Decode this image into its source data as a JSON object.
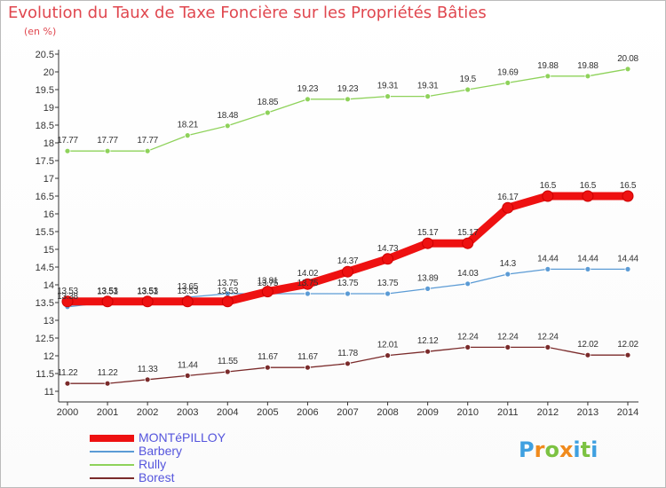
{
  "title": "Evolution du Taux de Taxe Foncière sur les Propriétés Bâties",
  "unit": "(en %)",
  "logo": {
    "text": "Proxiti",
    "letters": [
      "P",
      "r",
      "o",
      "x",
      "i",
      "t",
      "i"
    ],
    "colors": [
      "#3fa0e0",
      "#f08a1c",
      "#7cc242",
      "#f08a1c",
      "#3fa0e0",
      "#7cc242",
      "#3fa0e0"
    ]
  },
  "chart_data": {
    "type": "line",
    "x": [
      2000,
      2001,
      2002,
      2003,
      2004,
      2005,
      2006,
      2007,
      2008,
      2009,
      2010,
      2011,
      2012,
      2013,
      2014
    ],
    "ylim": [
      11,
      20.5
    ],
    "yticks": [
      "11",
      "11.5",
      "12",
      "12.5",
      "13",
      "13.5",
      "14",
      "14.5",
      "15",
      "15.5",
      "16",
      "16.5",
      "17",
      "17.5",
      "18",
      "18.5",
      "19",
      "19.5",
      "20",
      "20.5"
    ],
    "grid": false,
    "legend_position": "bottom-left",
    "series": [
      {
        "name": "MONTéPILLOY",
        "color": "#ee1111",
        "values": [
          13.53,
          13.53,
          13.53,
          13.53,
          13.53,
          13.81,
          14.02,
          14.37,
          14.73,
          15.17,
          15.17,
          16.17,
          16.5,
          16.5,
          16.5
        ],
        "labels": [
          "13.53",
          "13.53",
          "13.53",
          "13.53",
          "13.53",
          "13.81",
          "14.02",
          "14.37",
          "14.73",
          "15.17",
          "15.17",
          "16.17",
          "16.5",
          "16.5",
          "16.5"
        ]
      },
      {
        "name": "Barbery",
        "color": "#5b9bd5",
        "values": [
          13.38,
          13.51,
          13.51,
          13.65,
          13.75,
          13.75,
          13.75,
          13.75,
          13.75,
          13.89,
          14.03,
          14.3,
          14.44,
          14.44,
          14.44
        ],
        "labels": [
          "13.38",
          "13.51",
          "13.51",
          "13.65",
          "13.75",
          "13.75",
          "13.75",
          "13.75",
          "13.75",
          "13.89",
          "14.03",
          "14.3",
          "14.44",
          "14.44",
          "14.44"
        ]
      },
      {
        "name": "Rully",
        "color": "#8ed25a",
        "values": [
          17.77,
          17.77,
          17.77,
          18.21,
          18.48,
          18.85,
          19.23,
          19.23,
          19.31,
          19.31,
          19.5,
          19.69,
          19.88,
          19.88,
          20.08
        ],
        "labels": [
          "17.77",
          "17.77",
          "17.77",
          "18.21",
          "18.48",
          "18.85",
          "19.23",
          "19.23",
          "19.31",
          "19.31",
          "19.5",
          "19.69",
          "19.88",
          "19.88",
          "20.08"
        ]
      },
      {
        "name": "Borest",
        "color": "#7a2a2a",
        "values": [
          11.22,
          11.22,
          11.33,
          11.44,
          11.55,
          11.67,
          11.67,
          11.78,
          12.01,
          12.12,
          12.24,
          12.24,
          12.24,
          12.02,
          12.02
        ],
        "labels": [
          "11.22",
          "11.22",
          "11.33",
          "11.44",
          "11.55",
          "11.67",
          "11.67",
          "11.78",
          "12.01",
          "12.12",
          "12.24",
          "12.24",
          "12.24",
          "12.02",
          "12.02"
        ]
      }
    ]
  }
}
